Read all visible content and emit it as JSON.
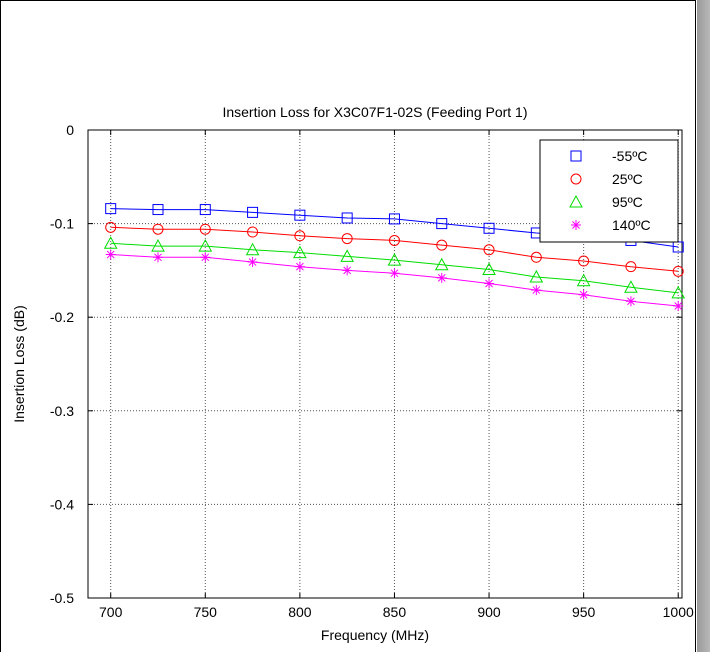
{
  "chart_data": {
    "type": "line",
    "title": "Insertion Loss for X3C07F1-02S (Feeding Port 1)",
    "xlabel": "Frequency (MHz)",
    "ylabel": "Insertion Loss (dB)",
    "xlim": [
      688,
      1002
    ],
    "ylim": [
      -0.5,
      0
    ],
    "grid": true,
    "legend_position": "top-right",
    "x_ticks": [
      700,
      750,
      800,
      850,
      900,
      950,
      1000
    ],
    "y_ticks": [
      0,
      -0.1,
      -0.2,
      -0.3,
      -0.4,
      -0.5
    ],
    "x_tick_labels": [
      "700",
      "750",
      "800",
      "850",
      "900",
      "950",
      "1000"
    ],
    "y_tick_labels": [
      "0",
      "-0.1",
      "-0.2",
      "-0.3",
      "-0.4",
      "-0.5"
    ],
    "x": [
      700,
      725,
      750,
      775,
      800,
      825,
      850,
      875,
      900,
      925,
      950,
      975,
      1000
    ],
    "series": [
      {
        "name": "-55ºC",
        "color": "#0000ff",
        "marker": "square",
        "values": [
          -0.084,
          -0.085,
          -0.085,
          -0.088,
          -0.091,
          -0.094,
          -0.095,
          -0.1,
          -0.105,
          -0.11,
          -0.113,
          -0.118,
          -0.125
        ]
      },
      {
        "name": "25ºC",
        "color": "#ff0000",
        "marker": "circle",
        "values": [
          -0.104,
          -0.106,
          -0.106,
          -0.109,
          -0.113,
          -0.116,
          -0.118,
          -0.123,
          -0.128,
          -0.136,
          -0.14,
          -0.146,
          -0.151
        ]
      },
      {
        "name": "95ºC",
        "color": "#00dd00",
        "marker": "triangle",
        "values": [
          -0.121,
          -0.124,
          -0.124,
          -0.128,
          -0.131,
          -0.135,
          -0.139,
          -0.144,
          -0.149,
          -0.157,
          -0.161,
          -0.168,
          -0.174
        ]
      },
      {
        "name": "140ºC",
        "color": "#ff00ff",
        "marker": "star",
        "values": [
          -0.133,
          -0.136,
          -0.136,
          -0.141,
          -0.146,
          -0.15,
          -0.153,
          -0.158,
          -0.164,
          -0.171,
          -0.176,
          -0.183,
          -0.188
        ]
      }
    ]
  }
}
